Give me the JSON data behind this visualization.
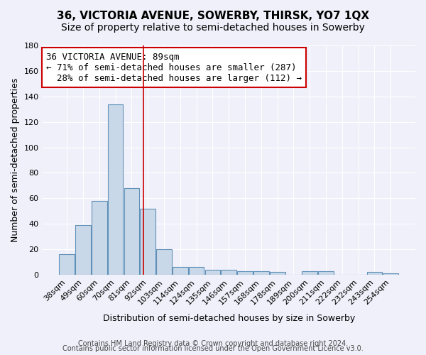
{
  "title": "36, VICTORIA AVENUE, SOWERBY, THIRSK, YO7 1QX",
  "subtitle": "Size of property relative to semi-detached houses in Sowerby",
  "xlabel": "Distribution of semi-detached houses by size in Sowerby",
  "ylabel": "Number of semi-detached properties",
  "footer_line1": "Contains HM Land Registry data © Crown copyright and database right 2024.",
  "footer_line2": "Contains public sector information licensed under the Open Government Licence v3.0.",
  "categories": [
    "38sqm",
    "49sqm",
    "60sqm",
    "70sqm",
    "81sqm",
    "92sqm",
    "103sqm",
    "114sqm",
    "124sqm",
    "135sqm",
    "146sqm",
    "157sqm",
    "168sqm",
    "178sqm",
    "189sqm",
    "200sqm",
    "211sqm",
    "222sqm",
    "232sqm",
    "243sqm",
    "254sqm"
  ],
  "values": [
    16,
    39,
    58,
    134,
    68,
    52,
    20,
    6,
    6,
    4,
    4,
    3,
    3,
    2,
    0,
    3,
    3,
    0,
    0,
    2,
    1
  ],
  "bar_color": "#c8d8e8",
  "bar_edge_color": "#6090b8",
  "property_size": 89,
  "property_label": "36 VICTORIA AVENUE: 89sqm",
  "pct_smaller": 71,
  "count_smaller": 287,
  "pct_larger": 28,
  "count_larger": 112,
  "annotation_box_edge": "#cc0000",
  "vline_color": "#cc0000",
  "ylim": [
    0,
    180
  ],
  "yticks": [
    0,
    20,
    40,
    60,
    80,
    100,
    120,
    140,
    160,
    180
  ],
  "background_color": "#f0f0fa",
  "grid_color": "#ffffff",
  "title_fontsize": 11,
  "subtitle_fontsize": 10,
  "axis_label_fontsize": 9,
  "tick_fontsize": 8,
  "annotation_fontsize": 9,
  "footer_fontsize": 7
}
